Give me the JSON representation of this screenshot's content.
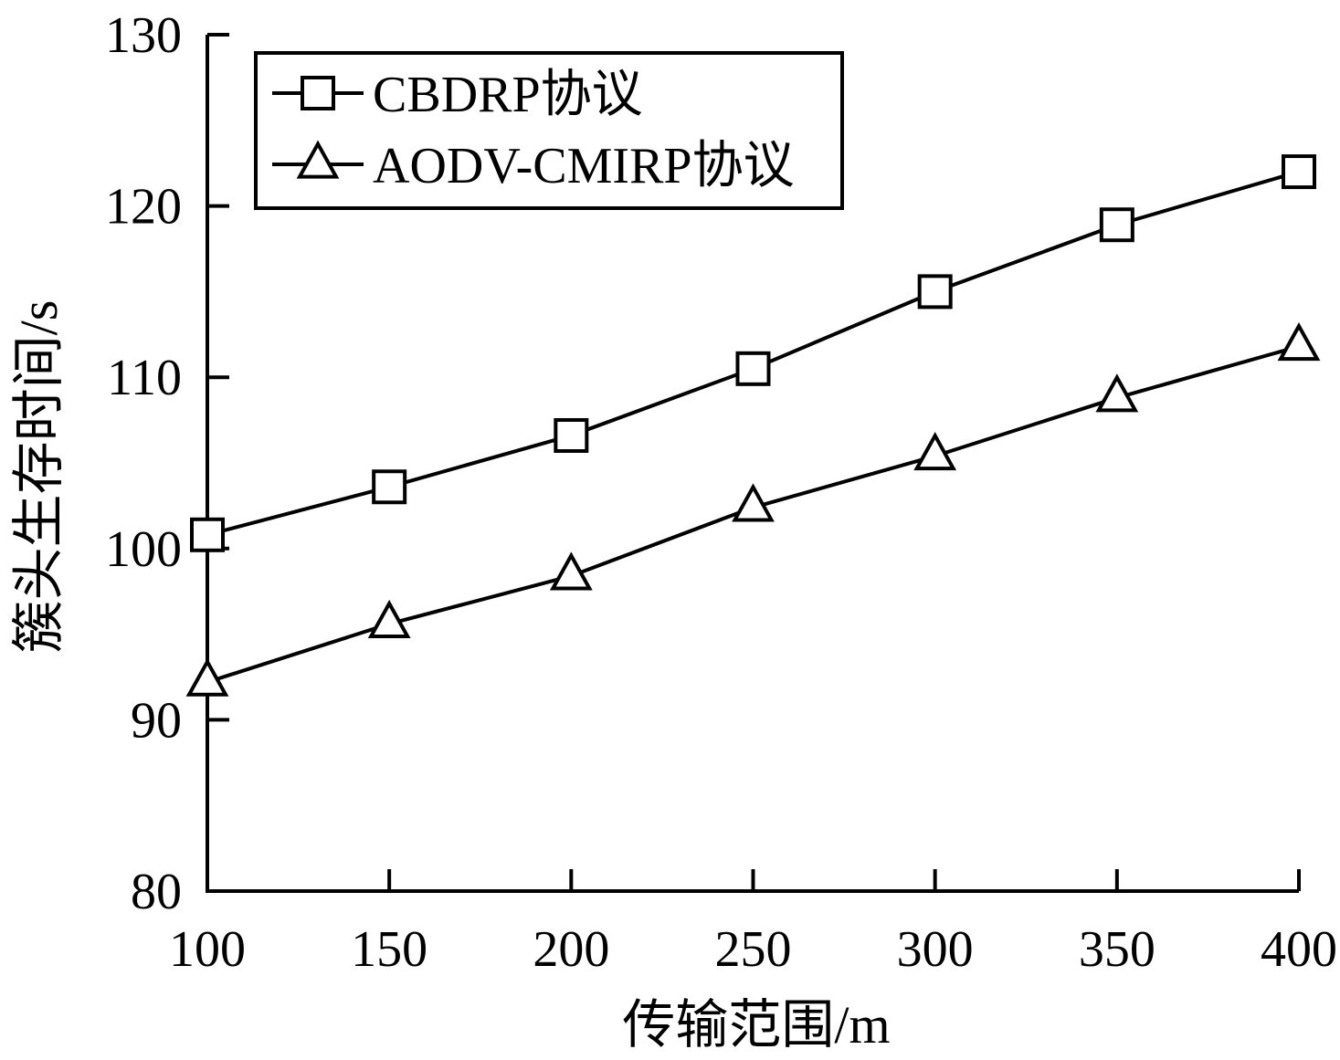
{
  "chart_data": {
    "type": "line",
    "title": "",
    "xlabel": "传输范围/m",
    "ylabel": "簇头生存时间/s",
    "x": [
      100,
      150,
      200,
      250,
      300,
      350,
      400
    ],
    "xticks": [
      "100",
      "150",
      "200",
      "250",
      "300",
      "350",
      "400"
    ],
    "yticks": [
      "80",
      "90",
      "100",
      "110",
      "120",
      "130"
    ],
    "xlim": [
      100,
      400
    ],
    "ylim": [
      80,
      130
    ],
    "grid": false,
    "legend_position": "top-left",
    "series": [
      {
        "name": "CBDRP协议",
        "marker": "square",
        "values": [
          100.8,
          103.6,
          106.6,
          110.5,
          115.0,
          118.9,
          122.0
        ]
      },
      {
        "name": "AODV-CMIRP协议",
        "marker": "triangle",
        "values": [
          92.2,
          95.6,
          98.4,
          102.4,
          105.4,
          108.8,
          111.8
        ]
      }
    ],
    "colors": {
      "line": "#000000",
      "marker_fill": "#ffffff",
      "background": "#ffffff"
    }
  }
}
